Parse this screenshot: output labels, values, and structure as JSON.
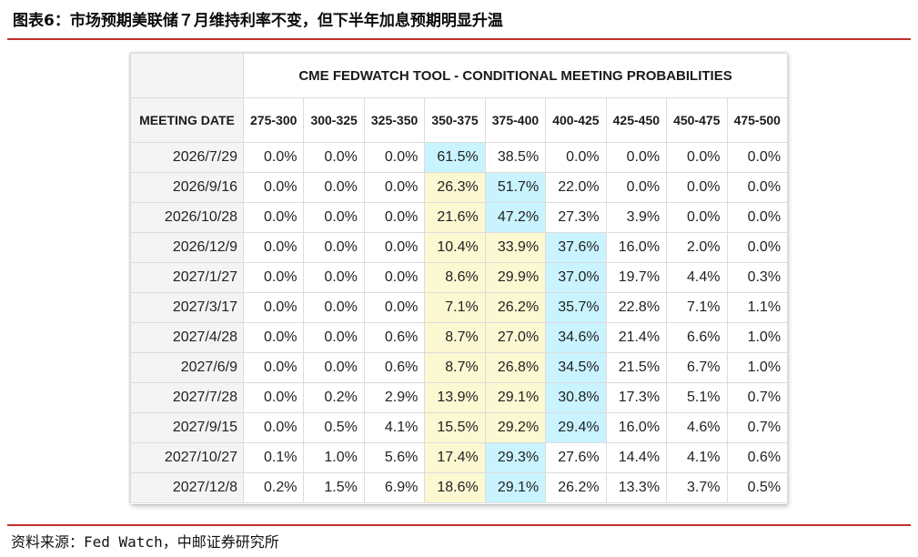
{
  "figure_title": "图表6：市场预期美联储７月维持利率不变，但下半年加息预期明显升温",
  "source_note": "资料来源：Fed Watch，中邮证券研究所",
  "colors": {
    "rule_red": "#c0302e",
    "highlight_blue": "#c9f3ff",
    "highlight_yellow": "#fbf8d2",
    "date_column_gray": "#f4f4f4"
  },
  "chart_data": {
    "type": "table",
    "title": "CME FEDWATCH TOOL - CONDITIONAL MEETING PROBABILITIES",
    "row_header_label": "MEETING DATE",
    "columns": [
      "275-300",
      "300-325",
      "325-350",
      "350-375",
      "375-400",
      "400-425",
      "425-450",
      "450-475",
      "475-500"
    ],
    "rows": [
      {
        "date": "2026/7/29",
        "values": [
          "0.0%",
          "0.0%",
          "0.0%",
          "61.5%",
          "38.5%",
          "0.0%",
          "0.0%",
          "0.0%",
          "0.0%"
        ],
        "highlight": [
          "",
          "",
          "",
          "blue",
          "",
          "",
          "",
          "",
          ""
        ]
      },
      {
        "date": "2026/9/16",
        "values": [
          "0.0%",
          "0.0%",
          "0.0%",
          "26.3%",
          "51.7%",
          "22.0%",
          "0.0%",
          "0.0%",
          "0.0%"
        ],
        "highlight": [
          "",
          "",
          "",
          "yellow",
          "blue",
          "",
          "",
          "",
          ""
        ]
      },
      {
        "date": "2026/10/28",
        "values": [
          "0.0%",
          "0.0%",
          "0.0%",
          "21.6%",
          "47.2%",
          "27.3%",
          "3.9%",
          "0.0%",
          "0.0%"
        ],
        "highlight": [
          "",
          "",
          "",
          "yellow",
          "blue",
          "",
          "",
          "",
          ""
        ]
      },
      {
        "date": "2026/12/9",
        "values": [
          "0.0%",
          "0.0%",
          "0.0%",
          "10.4%",
          "33.9%",
          "37.6%",
          "16.0%",
          "2.0%",
          "0.0%"
        ],
        "highlight": [
          "",
          "",
          "",
          "yellow",
          "yellow",
          "blue",
          "",
          "",
          ""
        ]
      },
      {
        "date": "2027/1/27",
        "values": [
          "0.0%",
          "0.0%",
          "0.0%",
          "8.6%",
          "29.9%",
          "37.0%",
          "19.7%",
          "4.4%",
          "0.3%"
        ],
        "highlight": [
          "",
          "",
          "",
          "yellow",
          "yellow",
          "blue",
          "",
          "",
          ""
        ]
      },
      {
        "date": "2027/3/17",
        "values": [
          "0.0%",
          "0.0%",
          "0.0%",
          "7.1%",
          "26.2%",
          "35.7%",
          "22.8%",
          "7.1%",
          "1.1%"
        ],
        "highlight": [
          "",
          "",
          "",
          "yellow",
          "yellow",
          "blue",
          "",
          "",
          ""
        ]
      },
      {
        "date": "2027/4/28",
        "values": [
          "0.0%",
          "0.0%",
          "0.6%",
          "8.7%",
          "27.0%",
          "34.6%",
          "21.4%",
          "6.6%",
          "1.0%"
        ],
        "highlight": [
          "",
          "",
          "",
          "yellow",
          "yellow",
          "blue",
          "",
          "",
          ""
        ]
      },
      {
        "date": "2027/6/9",
        "values": [
          "0.0%",
          "0.0%",
          "0.6%",
          "8.7%",
          "26.8%",
          "34.5%",
          "21.5%",
          "6.7%",
          "1.0%"
        ],
        "highlight": [
          "",
          "",
          "",
          "yellow",
          "yellow",
          "blue",
          "",
          "",
          ""
        ]
      },
      {
        "date": "2027/7/28",
        "values": [
          "0.0%",
          "0.2%",
          "2.9%",
          "13.9%",
          "29.1%",
          "30.8%",
          "17.3%",
          "5.1%",
          "0.7%"
        ],
        "highlight": [
          "",
          "",
          "",
          "yellow",
          "yellow",
          "blue",
          "",
          "",
          ""
        ]
      },
      {
        "date": "2027/9/15",
        "values": [
          "0.0%",
          "0.5%",
          "4.1%",
          "15.5%",
          "29.2%",
          "29.4%",
          "16.0%",
          "4.6%",
          "0.7%"
        ],
        "highlight": [
          "",
          "",
          "",
          "yellow",
          "yellow",
          "blue",
          "",
          "",
          ""
        ]
      },
      {
        "date": "2027/10/27",
        "values": [
          "0.1%",
          "1.0%",
          "5.6%",
          "17.4%",
          "29.3%",
          "27.6%",
          "14.4%",
          "4.1%",
          "0.6%"
        ],
        "highlight": [
          "",
          "",
          "",
          "yellow",
          "blue",
          "",
          "",
          "",
          ""
        ]
      },
      {
        "date": "2027/12/8",
        "values": [
          "0.2%",
          "1.5%",
          "6.9%",
          "18.6%",
          "29.1%",
          "26.2%",
          "13.3%",
          "3.7%",
          "0.5%"
        ],
        "highlight": [
          "",
          "",
          "",
          "yellow",
          "blue",
          "",
          "",
          "",
          ""
        ]
      }
    ]
  }
}
